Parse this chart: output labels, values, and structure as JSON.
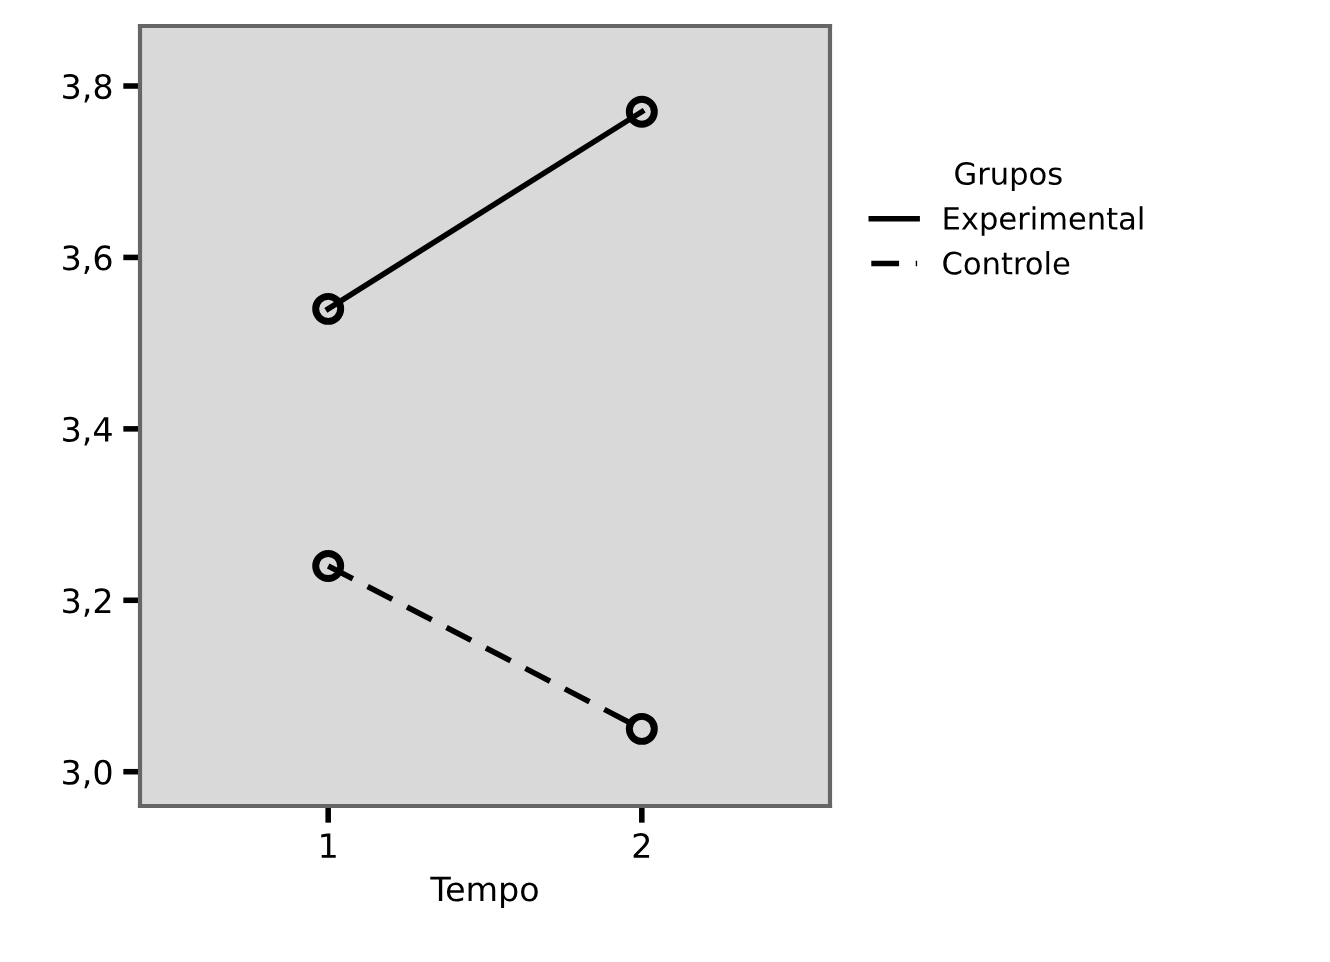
{
  "chart_data": {
    "type": "line",
    "xlabel": "Tempo",
    "legend_title": "Grupos",
    "categories": [
      "1",
      "2"
    ],
    "series": [
      {
        "name": "Experimental",
        "color": "#000000",
        "line_style": "solid",
        "values": [
          3.54,
          3.77
        ]
      },
      {
        "name": "Controle",
        "color": "#000000",
        "line_style": "dashed",
        "values": [
          3.24,
          3.05
        ]
      }
    ],
    "ylim": [
      2.96,
      3.87
    ],
    "yticks": [
      {
        "value": 3.0,
        "label": "3,0"
      },
      {
        "value": 3.2,
        "label": "3,2"
      },
      {
        "value": 3.4,
        "label": "3,4"
      },
      {
        "value": 3.6,
        "label": "3,6"
      },
      {
        "value": 3.8,
        "label": "3,8"
      }
    ],
    "marker": "circle",
    "grid": false,
    "legend": "right"
  }
}
